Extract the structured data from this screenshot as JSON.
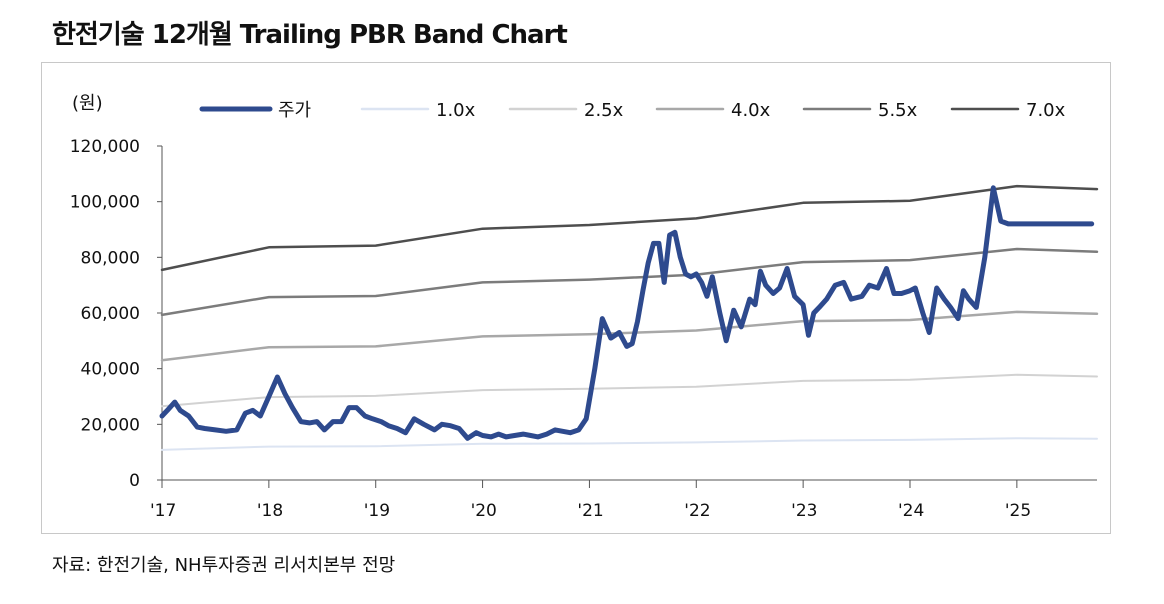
{
  "title": "한전기술  12개월 Trailing PBR Band Chart",
  "source": "자료: 한전기술, NH투자증권 리서치본부 전망",
  "chart_data": {
    "type": "line",
    "title": "한전기술  12개월 Trailing PBR Band Chart",
    "ylabel": "(원)",
    "xlabel": "",
    "ylim": [
      0,
      120000
    ],
    "yticks": [
      0,
      20000,
      40000,
      60000,
      80000,
      100000,
      120000
    ],
    "ytick_labels": [
      "0",
      "20,000",
      "40,000",
      "60,000",
      "80,000",
      "100,000",
      "120,000"
    ],
    "xlim": [
      2017.0,
      2025.75
    ],
    "xticks": [
      2017,
      2018,
      2019,
      2020,
      2021,
      2022,
      2023,
      2024,
      2025
    ],
    "xtick_labels": [
      "'17",
      "'18",
      "'19",
      "'20",
      "'21",
      "'22",
      "'23",
      "'24",
      "'25"
    ],
    "legend_position": "top",
    "series": [
      {
        "name": "주가",
        "color": "#2e4a8e",
        "width": 5,
        "x": [
          2017.0,
          2017.05,
          2017.12,
          2017.17,
          2017.25,
          2017.33,
          2017.4,
          2017.5,
          2017.6,
          2017.7,
          2017.78,
          2017.85,
          2017.92,
          2018.0,
          2018.08,
          2018.15,
          2018.22,
          2018.3,
          2018.38,
          2018.45,
          2018.52,
          2018.6,
          2018.68,
          2018.75,
          2018.82,
          2018.9,
          2018.97,
          2019.05,
          2019.12,
          2019.2,
          2019.28,
          2019.36,
          2019.45,
          2019.55,
          2019.62,
          2019.7,
          2019.78,
          2019.86,
          2019.94,
          2020.0,
          2020.08,
          2020.15,
          2020.22,
          2020.3,
          2020.38,
          2020.45,
          2020.52,
          2020.6,
          2020.68,
          2020.75,
          2020.82,
          2020.9,
          2020.97,
          2021.05,
          2021.12,
          2021.2,
          2021.28,
          2021.35,
          2021.4,
          2021.45,
          2021.5,
          2021.55,
          2021.6,
          2021.65,
          2021.7,
          2021.75,
          2021.8,
          2021.85,
          2021.9,
          2021.95,
          2022.0,
          2022.05,
          2022.1,
          2022.15,
          2022.22,
          2022.28,
          2022.35,
          2022.42,
          2022.5,
          2022.55,
          2022.6,
          2022.65,
          2022.72,
          2022.78,
          2022.85,
          2022.92,
          2023.0,
          2023.05,
          2023.1,
          2023.15,
          2023.22,
          2023.3,
          2023.38,
          2023.45,
          2023.55,
          2023.62,
          2023.7,
          2023.78,
          2023.85,
          2023.92,
          2024.0,
          2024.05,
          2024.12,
          2024.18,
          2024.25,
          2024.32,
          2024.38,
          2024.45,
          2024.5,
          2024.55,
          2024.62,
          2024.7,
          2024.78,
          2024.85,
          2024.92,
          2024.97,
          2025.02,
          2025.08,
          2025.15,
          2025.2,
          2025.25,
          2025.3,
          2025.35,
          2025.4,
          2025.45,
          2025.5,
          2025.55,
          2025.62,
          2025.7
        ],
        "y": [
          23000,
          25000,
          28000,
          25000,
          23000,
          19000,
          18500,
          18000,
          17500,
          18000,
          24000,
          25000,
          23000,
          30000,
          37000,
          31000,
          26000,
          21000,
          20500,
          21000,
          18000,
          21000,
          21000,
          26000,
          26000,
          23000,
          22000,
          21000,
          19500,
          18500,
          17000,
          22000,
          20000,
          18000,
          20000,
          19500,
          18500,
          15000,
          17000,
          16000,
          15500,
          16500,
          15500,
          16000,
          16500,
          16000,
          15500,
          16500,
          18000,
          17500,
          17000,
          18000,
          22000,
          40000,
          58000,
          51000,
          53000,
          48000,
          49000,
          57000,
          68000,
          78000,
          85000,
          85000,
          71000,
          88000,
          89000,
          80000,
          74000,
          73000,
          74000,
          71000,
          66000,
          73000,
          60000,
          50000,
          61000,
          55000,
          65000,
          63000,
          75000,
          70000,
          67000,
          69000,
          76000,
          66000,
          63000,
          52000,
          60000,
          62000,
          65000,
          70000,
          71000,
          65000,
          66000,
          70000,
          69000,
          76000,
          67000,
          67000,
          68000,
          69000,
          60000,
          53000,
          69000,
          65000,
          62000,
          58000,
          68000,
          65000,
          62000,
          80000,
          105000,
          93000,
          92000,
          92000,
          92000,
          92000,
          92000,
          92000,
          92000,
          92000,
          92000,
          92000,
          92000,
          92000,
          92000,
          92000,
          92000
        ]
      },
      {
        "name": "1.0x",
        "color": "#dce4f2",
        "width": 2,
        "x": [
          2017.0,
          2018.0,
          2019.0,
          2020.0,
          2021.0,
          2022.0,
          2023.0,
          2024.0,
          2025.0,
          2025.75
        ],
        "y": [
          10800,
          12000,
          12100,
          13000,
          13100,
          13500,
          14200,
          14400,
          15000,
          14800
        ]
      },
      {
        "name": "2.5x",
        "color": "#d2d2d2",
        "width": 2,
        "x": [
          2017.0,
          2018.0,
          2019.0,
          2020.0,
          2021.0,
          2022.0,
          2023.0,
          2024.0,
          2025.0,
          2025.75
        ],
        "y": [
          26500,
          29800,
          30200,
          32300,
          32800,
          33500,
          35600,
          36000,
          37800,
          37200
        ]
      },
      {
        "name": "4.0x",
        "color": "#a8a8a8",
        "width": 2.5,
        "x": [
          2017.0,
          2018.0,
          2019.0,
          2020.0,
          2021.0,
          2022.0,
          2023.0,
          2024.0,
          2025.0,
          2025.75
        ],
        "y": [
          43000,
          47700,
          48000,
          51600,
          52400,
          53700,
          57100,
          57500,
          60400,
          59700
        ]
      },
      {
        "name": "5.5x",
        "color": "#7c7c7c",
        "width": 2.5,
        "x": [
          2017.0,
          2018.0,
          2019.0,
          2020.0,
          2021.0,
          2022.0,
          2023.0,
          2024.0,
          2025.0,
          2025.75
        ],
        "y": [
          59300,
          65700,
          66100,
          71000,
          72000,
          73800,
          78300,
          79000,
          83000,
          82000
        ]
      },
      {
        "name": "7.0x",
        "color": "#4e4e4e",
        "width": 2.5,
        "x": [
          2017.0,
          2018.0,
          2019.0,
          2020.0,
          2021.0,
          2022.0,
          2023.0,
          2024.0,
          2025.0,
          2025.75
        ],
        "y": [
          75500,
          83600,
          84200,
          90300,
          91600,
          94000,
          99600,
          100300,
          105600,
          104500
        ]
      }
    ]
  }
}
